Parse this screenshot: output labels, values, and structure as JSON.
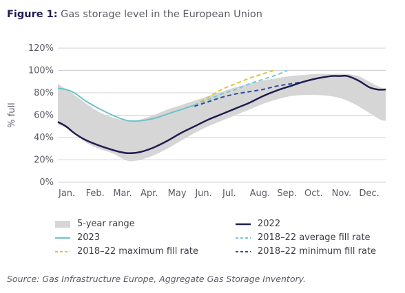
{
  "header": {
    "figure_label": "Figure 1:",
    "title_text": "Gas storage level in the European Union"
  },
  "source": "Source: Gas Infrastructure Europe, Aggregate Gas Storage Inventory.",
  "colors": {
    "range": "#d6d6d6",
    "s2022": "#1f1d4f",
    "s2023": "#6cc3c9",
    "avg": "#73c9d3",
    "max": "#e1c331",
    "min": "#2e4da0",
    "grid": "#d0d0d6",
    "axis_text": "#5b5b66"
  },
  "chart_data": {
    "type": "line",
    "ylabel": "% full",
    "xlabel": "",
    "ylim": [
      0,
      120
    ],
    "yticks": [
      0,
      20,
      40,
      60,
      80,
      100,
      120
    ],
    "ytick_labels": [
      "0%",
      "20%",
      "40%",
      "60%",
      "80%",
      "100%",
      "120%"
    ],
    "x_range": [
      0,
      12
    ],
    "xticks": [
      0,
      1,
      2,
      3,
      4,
      5,
      6,
      7,
      8,
      9,
      10,
      11
    ],
    "xtick_labels": [
      "Jan.",
      "Feb.",
      "Mar.",
      "Apr.",
      "May",
      "Jun.",
      "Jul.",
      "Aug.",
      "Sep.",
      "Oct.",
      "Nov.",
      "Dec."
    ],
    "grid": true,
    "range_band": {
      "name": "5-year range",
      "x": [
        0,
        0.5,
        1,
        1.5,
        2,
        2.3,
        2.6,
        3,
        3.5,
        4,
        4.5,
        5,
        5.5,
        6,
        6.5,
        7,
        7.5,
        8,
        8.5,
        9,
        9.5,
        10,
        10.5,
        11,
        11.4,
        11.8,
        12
      ],
      "upper": [
        88,
        80,
        71,
        63,
        58,
        56,
        55,
        56,
        60,
        65,
        69,
        73,
        77,
        81,
        85,
        88,
        91,
        93,
        95,
        96,
        97,
        97,
        97,
        95,
        90,
        85,
        84
      ],
      "lower": [
        52,
        46,
        36,
        30,
        26,
        22,
        19,
        20,
        24,
        30,
        37,
        44,
        50,
        55,
        60,
        65,
        70,
        74,
        77,
        78,
        78,
        77,
        74,
        68,
        62,
        56,
        55
      ]
    },
    "series": [
      {
        "name": "2022",
        "style": "solid",
        "x": [
          0,
          0.3,
          0.6,
          1,
          1.5,
          2,
          2.3,
          2.6,
          3,
          3.5,
          4,
          4.5,
          5,
          5.5,
          6,
          6.5,
          7,
          7.5,
          8,
          8.5,
          9,
          9.5,
          10,
          10.3,
          10.6,
          11,
          11.4,
          11.7,
          12
        ],
        "values": [
          54,
          50,
          44,
          38,
          33,
          29,
          27,
          26,
          27,
          31,
          37,
          44,
          50,
          56,
          61,
          66,
          71,
          77,
          82,
          86,
          90,
          93,
          95,
          95,
          95,
          91,
          85,
          83,
          83
        ]
      },
      {
        "name": "2023",
        "style": "solid",
        "x": [
          0,
          0.3,
          0.6,
          1,
          1.5,
          2,
          2.3,
          2.6,
          3,
          3.5,
          4,
          4.5,
          5
        ],
        "values": [
          84,
          83,
          80,
          73,
          66,
          60,
          57,
          55,
          55,
          57,
          61,
          65,
          69
        ]
      },
      {
        "name": "2018–22 average fill rate",
        "style": "dashed",
        "x": [
          5,
          5.5,
          6,
          6.5,
          7,
          7.5,
          8,
          8.4
        ],
        "values": [
          69,
          74,
          79,
          83,
          88,
          92,
          96,
          100
        ]
      },
      {
        "name": "2018–22 maximum fill rate",
        "style": "dashed",
        "x": [
          5,
          5.5,
          6,
          6.5,
          7,
          7.5,
          7.9
        ],
        "values": [
          69,
          76,
          83,
          88,
          93,
          97,
          100
        ]
      },
      {
        "name": "2018–22 minimum fill rate",
        "style": "dashed",
        "x": [
          5,
          5.5,
          6,
          6.5,
          7,
          7.5,
          8,
          8.5,
          9
        ],
        "values": [
          68,
          72,
          76,
          79,
          81,
          83,
          86,
          88,
          90
        ]
      }
    ]
  },
  "legend": {
    "range": "5-year range",
    "s2022": "2022",
    "s2023": "2023",
    "avg": "2018–22 average fill rate",
    "max": "2018–22 maximum fill rate",
    "min": "2018–22 minimum fill rate"
  }
}
